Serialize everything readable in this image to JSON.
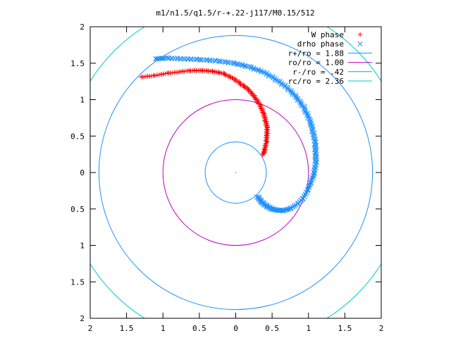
{
  "chart_data": {
    "type": "scatter",
    "title": "m1/n1.5/q1.5/r-+.22-j117/M0.15/512",
    "xlim": [
      -2,
      2
    ],
    "ylim": [
      -2,
      2
    ],
    "x_tick_labels": [
      "2",
      "1.5",
      "1",
      "0.5",
      "0",
      "0.5",
      "1",
      "1.5",
      "2"
    ],
    "y_tick_labels": [
      "2",
      "1.5",
      "1",
      "0.5",
      "0",
      "0.5",
      "1",
      "1.5",
      "2"
    ],
    "grid": false,
    "legend_position": "top-right",
    "series": [
      {
        "name": "W phase",
        "marker": "plus",
        "color": "#ff0000",
        "points": [
          [
            0.38,
            0.25
          ],
          [
            0.4,
            0.32
          ],
          [
            0.42,
            0.42
          ],
          [
            0.43,
            0.52
          ],
          [
            0.43,
            0.62
          ],
          [
            0.41,
            0.72
          ],
          [
            0.38,
            0.82
          ],
          [
            0.33,
            0.93
          ],
          [
            0.26,
            1.04
          ],
          [
            0.17,
            1.14
          ],
          [
            0.07,
            1.22
          ],
          [
            -0.05,
            1.3
          ],
          [
            -0.18,
            1.36
          ],
          [
            -0.32,
            1.39
          ],
          [
            -0.47,
            1.4
          ],
          [
            -0.62,
            1.4
          ],
          [
            -0.78,
            1.38
          ],
          [
            -0.95,
            1.36
          ],
          [
            -1.12,
            1.33
          ],
          [
            -1.3,
            1.31
          ]
        ]
      },
      {
        "name": "drho phase",
        "marker": "cross",
        "color": "#1e90ff",
        "points": [
          [
            0.3,
            -0.33
          ],
          [
            0.35,
            -0.4
          ],
          [
            0.42,
            -0.46
          ],
          [
            0.5,
            -0.5
          ],
          [
            0.58,
            -0.52
          ],
          [
            0.67,
            -0.52
          ],
          [
            0.76,
            -0.49
          ],
          [
            0.85,
            -0.43
          ],
          [
            0.93,
            -0.35
          ],
          [
            0.99,
            -0.24
          ],
          [
            1.04,
            -0.12
          ],
          [
            1.08,
            0.0
          ],
          [
            1.1,
            0.14
          ],
          [
            1.1,
            0.28
          ],
          [
            1.09,
            0.42
          ],
          [
            1.06,
            0.58
          ],
          [
            1.01,
            0.74
          ],
          [
            0.93,
            0.9
          ],
          [
            0.83,
            1.04
          ],
          [
            0.7,
            1.17
          ],
          [
            0.55,
            1.28
          ],
          [
            0.38,
            1.38
          ],
          [
            0.18,
            1.45
          ],
          [
            -0.02,
            1.5
          ],
          [
            -0.25,
            1.53
          ],
          [
            -0.48,
            1.55
          ],
          [
            -0.72,
            1.56
          ],
          [
            -0.96,
            1.57
          ],
          [
            -1.1,
            1.56
          ]
        ]
      },
      {
        "name": "r+/ro = 1.88",
        "type": "circle",
        "radius": 1.88,
        "color": "#1e90ff"
      },
      {
        "name": "ro/ro = 1.00",
        "type": "circle",
        "radius": 1.0,
        "color": "#c000c0"
      },
      {
        "name": "r-/ro = .42",
        "type": "circle",
        "radius": 0.42,
        "color": "#1e90ff"
      },
      {
        "name": "rc/ro = 2.36",
        "type": "circle",
        "radius": 2.36,
        "color": "#00c8d2"
      }
    ]
  }
}
